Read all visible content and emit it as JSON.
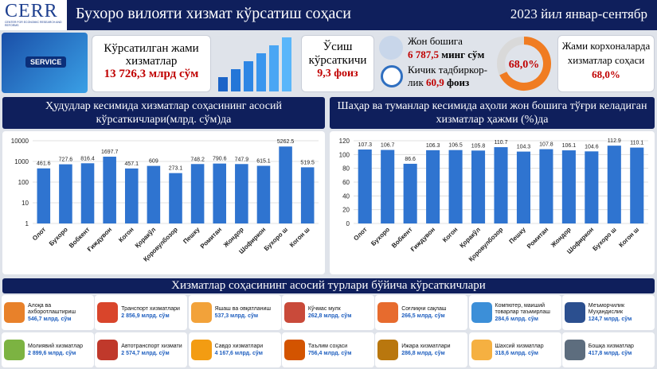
{
  "header": {
    "logo": "CERR",
    "logo_subtitle": "CENTER FOR ECONOMIC RESEARCH AND REFORMS",
    "title": "Бухоро вилояти хизмат кўрсатиш соҳаси",
    "period": "2023 йил январ-сентябр"
  },
  "summary": {
    "image_text": "SERVICE",
    "total_label": "Кўрсатилган жами хизматлар",
    "total_value": "13 726,3 млрд сўм",
    "growth_label": "Ўсиш кўрсаткичи",
    "growth_value": "9,3 фоиз",
    "per_capita_label": "Жон бошига",
    "per_capita_value": "6 787,5",
    "per_capita_unit": "минг сўм",
    "small_business_label": "Кичик тадбиркор-лик",
    "small_business_value": "60,9",
    "small_business_unit": "фоиз",
    "donut": {
      "type": "pie",
      "value": 68,
      "label": "68,0%",
      "color": "#f07c22",
      "rest_color": "#d9d9d9"
    },
    "enterprises_label": "Жами корхоналарда хизматлар соҳаси",
    "enterprises_value": "68,0%"
  },
  "chart_data": [
    {
      "type": "bar",
      "title": "Ҳудудлар кесимида хизматлар соҳасининг асосий кўрсаткичлари(млрд. сўм)да",
      "categories": [
        "Олот",
        "Бухоро",
        "Вобкент",
        "Ғиждувон",
        "Когон",
        "Қоракўл",
        "Қоровулбозор",
        "Пешку",
        "Ромитан",
        "Жондор",
        "Шофиркон",
        "Бухоро ш",
        "Когон ш"
      ],
      "values": [
        461.6,
        727.6,
        816.4,
        1697.7,
        457.1,
        609,
        273.1,
        748.2,
        790.6,
        747.9,
        615.1,
        5262.5,
        519.5
      ],
      "color": "#2f74d0",
      "log": true,
      "ylim": [
        1,
        10000
      ],
      "yticks": [
        1,
        10,
        100,
        1000,
        10000
      ],
      "grid": true
    },
    {
      "type": "bar",
      "title": "Шаҳар ва туманлар кесимида аҳоли жон бошига тўғри келадиган хизматлар ҳажми (%)да",
      "categories": [
        "Олот",
        "Бухоро",
        "Вобкент",
        "Ғиждувон",
        "Когон",
        "Қоракўл",
        "Қоровулбозор",
        "Пешку",
        "Ромитан",
        "Жондор",
        "Шофиркон",
        "Бухоро ш",
        "Когон ш"
      ],
      "values": [
        107.3,
        106.7,
        86.6,
        106.3,
        106.5,
        105.8,
        110.7,
        104.3,
        107.8,
        106.1,
        104.6,
        112.9,
        110.1
      ],
      "color": "#2f74d0",
      "log": false,
      "ylim": [
        0,
        120
      ],
      "yticks": [
        0,
        20,
        40,
        60,
        80,
        100,
        120
      ],
      "grid": true
    }
  ],
  "services": {
    "title": "Хизматлар соҳасининг асосий турлари бўйича кўрсаткичлари",
    "items": [
      {
        "name": "Алоқа ва ахборотлаштириш",
        "value": "546,7 млрд. сўм"
      },
      {
        "name": "Транспорт хизматлари",
        "value": "2 856,9 млрд. сўм"
      },
      {
        "name": "Яшаш ва овқатланиш",
        "value": "537,3 млрд. сўм"
      },
      {
        "name": "Кўчмас мулк",
        "value": "262,8 млрд. сўм"
      },
      {
        "name": "Соғлиқни сақлаш",
        "value": "266,5 млрд. сўм"
      },
      {
        "name": "Компютер, маиший товарлар таъмирлаш",
        "value": "284,6 млрд. сўм"
      },
      {
        "name": "Меъморчилик Муҳандислик",
        "value": "124,7 млрд. сўм"
      },
      {
        "name": "Молиявий хизматлар",
        "value": "2 899,6 млрд. сўм"
      },
      {
        "name": "Автотранспорт хизмати",
        "value": "2 574,7 млрд. сўм"
      },
      {
        "name": "Савдо хизматлари",
        "value": "4 167,6 млрд. сўм"
      },
      {
        "name": "Таълим соҳаси",
        "value": "756,4 млрд. сўм"
      },
      {
        "name": "Ижара хизматлари",
        "value": "286,8 млрд. сўм"
      },
      {
        "name": "Шахсий хизматлар",
        "value": "318,6 млрд. сўм"
      },
      {
        "name": "Бошқа хизматлар",
        "value": "417,8 млрд. сўм"
      }
    ]
  }
}
